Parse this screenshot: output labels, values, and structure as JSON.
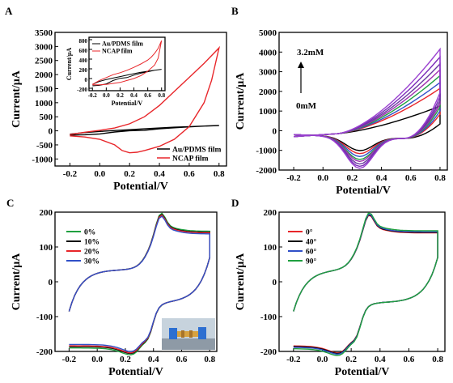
{
  "chart_data": [
    {
      "panel": "A",
      "type": "line",
      "xlabel": "Potential/V",
      "ylabel": "Current/μA",
      "xlim": [
        -0.3,
        0.85
      ],
      "ylim": [
        -1250,
        3500
      ],
      "xticks": [
        "-0.2",
        "0.0",
        "0.2",
        "0.4",
        "0.6",
        "0.8"
      ],
      "yticks": [
        "-1000",
        "-500",
        "0",
        "500",
        "1000",
        "1500",
        "2000",
        "2500",
        "3000",
        "3500"
      ],
      "legend_position": "lower-right",
      "series": [
        {
          "name": "Au/PDMS film",
          "color": "#000000",
          "x": [
            -0.2,
            -0.1,
            0.0,
            0.1,
            0.2,
            0.3,
            0.4,
            0.5,
            0.6,
            0.7,
            0.8,
            0.7,
            0.6,
            0.5,
            0.4,
            0.3,
            0.2,
            0.1,
            0.0,
            -0.1,
            -0.2
          ],
          "y": [
            -120,
            -60,
            -20,
            10,
            40,
            70,
            100,
            130,
            150,
            170,
            190,
            170,
            140,
            110,
            70,
            20,
            5,
            -40,
            -110,
            -140,
            -150
          ]
        },
        {
          "name": "NCAP film",
          "color": "#e8262a",
          "x": [
            -0.2,
            -0.1,
            0.0,
            0.1,
            0.2,
            0.3,
            0.4,
            0.5,
            0.6,
            0.7,
            0.8,
            0.75,
            0.7,
            0.6,
            0.5,
            0.4,
            0.3,
            0.25,
            0.2,
            0.15,
            0.1,
            0.0,
            -0.1,
            -0.2
          ],
          "y": [
            -130,
            -50,
            20,
            100,
            250,
            500,
            900,
            1400,
            1900,
            2400,
            2950,
            1800,
            1000,
            150,
            -300,
            -550,
            -700,
            -760,
            -780,
            -700,
            -500,
            -300,
            -220,
            -180
          ]
        }
      ],
      "inset": {
        "xlabel": "Potential/V",
        "ylabel": "Current/μA",
        "xlim": [
          -0.25,
          0.85
        ],
        "ylim": [
          -250,
          850
        ],
        "xticks": [
          "-0.2",
          "0.0",
          "0.2",
          "0.4",
          "0.6",
          "0.8"
        ],
        "yticks": [
          "-200",
          "0",
          "200",
          "400",
          "600",
          "800"
        ],
        "legend": [
          "Au/PDMS film",
          "NCAP film"
        ],
        "series": [
          {
            "name": "Au/PDMS film",
            "color": "#000000",
            "x": [
              -0.2,
              -0.1,
              0.0,
              0.1,
              0.2,
              0.3,
              0.4,
              0.5,
              0.6,
              0.7,
              0.8,
              0.7,
              0.6,
              0.5,
              0.4,
              0.3,
              0.2,
              0.1,
              0.0,
              -0.1,
              -0.2
            ],
            "y": [
              -120,
              -60,
              -20,
              10,
              40,
              70,
              100,
              130,
              150,
              170,
              190,
              170,
              140,
              110,
              70,
              20,
              5,
              -40,
              -110,
              -140,
              -150
            ]
          },
          {
            "name": "NCAP film",
            "color": "#e8262a",
            "x": [
              -0.2,
              -0.1,
              0.0,
              0.1,
              0.2,
              0.3,
              0.4,
              0.5,
              0.6,
              0.65,
              0.7,
              0.75,
              0.8,
              0.75,
              0.7,
              0.6,
              0.5,
              0.4,
              0.3,
              0.2,
              0.1,
              0.0,
              -0.1,
              -0.2
            ],
            "y": [
              -120,
              -40,
              20,
              80,
              120,
              170,
              230,
              300,
              380,
              440,
              520,
              620,
              780,
              420,
              280,
              150,
              60,
              0,
              -40,
              -80,
              -100,
              -120,
              -130,
              -130
            ]
          }
        ]
      }
    },
    {
      "panel": "B",
      "type": "line",
      "xlabel": "Potential/V",
      "ylabel": "Current/μA",
      "xlim": [
        -0.3,
        0.85
      ],
      "ylim": [
        -2000,
        5000
      ],
      "xticks": [
        "-0.2",
        "0.0",
        "0.2",
        "0.4",
        "0.6",
        "0.8"
      ],
      "yticks": [
        "-2000",
        "-1000",
        "0",
        "1000",
        "2000",
        "3000",
        "4000",
        "5000"
      ],
      "annotations": {
        "top": "3.2mM",
        "bottom": "0mM"
      },
      "series": [
        {
          "color": "#000000",
          "peak": 1450,
          "trough": -700
        },
        {
          "color": "#e8262a",
          "peak": 2350,
          "trough": -850
        },
        {
          "color": "#3050c8",
          "peak": 2650,
          "trough": -1000
        },
        {
          "color": "#20a040",
          "peak": 3000,
          "trough": -1150
        },
        {
          "color": "#a030b0",
          "peak": 3300,
          "trough": -1250
        },
        {
          "color": "#6a3aa0",
          "peak": 3600,
          "trough": -1380
        },
        {
          "color": "#7a2bb8",
          "peak": 3950,
          "trough": -1500
        },
        {
          "color": "#9a40d0",
          "peak": 4350,
          "trough": -1600
        }
      ]
    },
    {
      "panel": "C",
      "type": "line",
      "xlabel": "Potential/V",
      "ylabel": "Current/μA",
      "xlim": [
        -0.3,
        0.85
      ],
      "ylim": [
        -200,
        200
      ],
      "xticks": [
        "-0.2",
        "0.0",
        "0.2",
        "0.4",
        "0.6",
        "0.8"
      ],
      "yticks": [
        "-200",
        "-100",
        "0",
        "100",
        "200"
      ],
      "legend_position": "top-left",
      "series": [
        {
          "name": "0%",
          "color": "#20a040",
          "scale": 1.0
        },
        {
          "name": "10%",
          "color": "#000000",
          "scale": 0.98
        },
        {
          "name": "20%",
          "color": "#e8262a",
          "scale": 0.97
        },
        {
          "name": "30%",
          "color": "#3050c8",
          "scale": 0.95
        }
      ]
    },
    {
      "panel": "D",
      "type": "line",
      "xlabel": "Potential/V",
      "ylabel": "Current/μA",
      "xlim": [
        -0.3,
        0.85
      ],
      "ylim": [
        -200,
        200
      ],
      "xticks": [
        "-0.2",
        "0.0",
        "0.2",
        "0.4",
        "0.6",
        "0.8"
      ],
      "yticks": [
        "-200",
        "-100",
        "0",
        "100",
        "200"
      ],
      "legend_position": "top-left",
      "series": [
        {
          "name": "0°",
          "color": "#e8262a",
          "scale": 0.97
        },
        {
          "name": "40°",
          "color": "#000000",
          "scale": 0.98
        },
        {
          "name": "60°",
          "color": "#3050c8",
          "scale": 0.99
        },
        {
          "name": "90°",
          "color": "#20a040",
          "scale": 1.01
        }
      ]
    }
  ]
}
